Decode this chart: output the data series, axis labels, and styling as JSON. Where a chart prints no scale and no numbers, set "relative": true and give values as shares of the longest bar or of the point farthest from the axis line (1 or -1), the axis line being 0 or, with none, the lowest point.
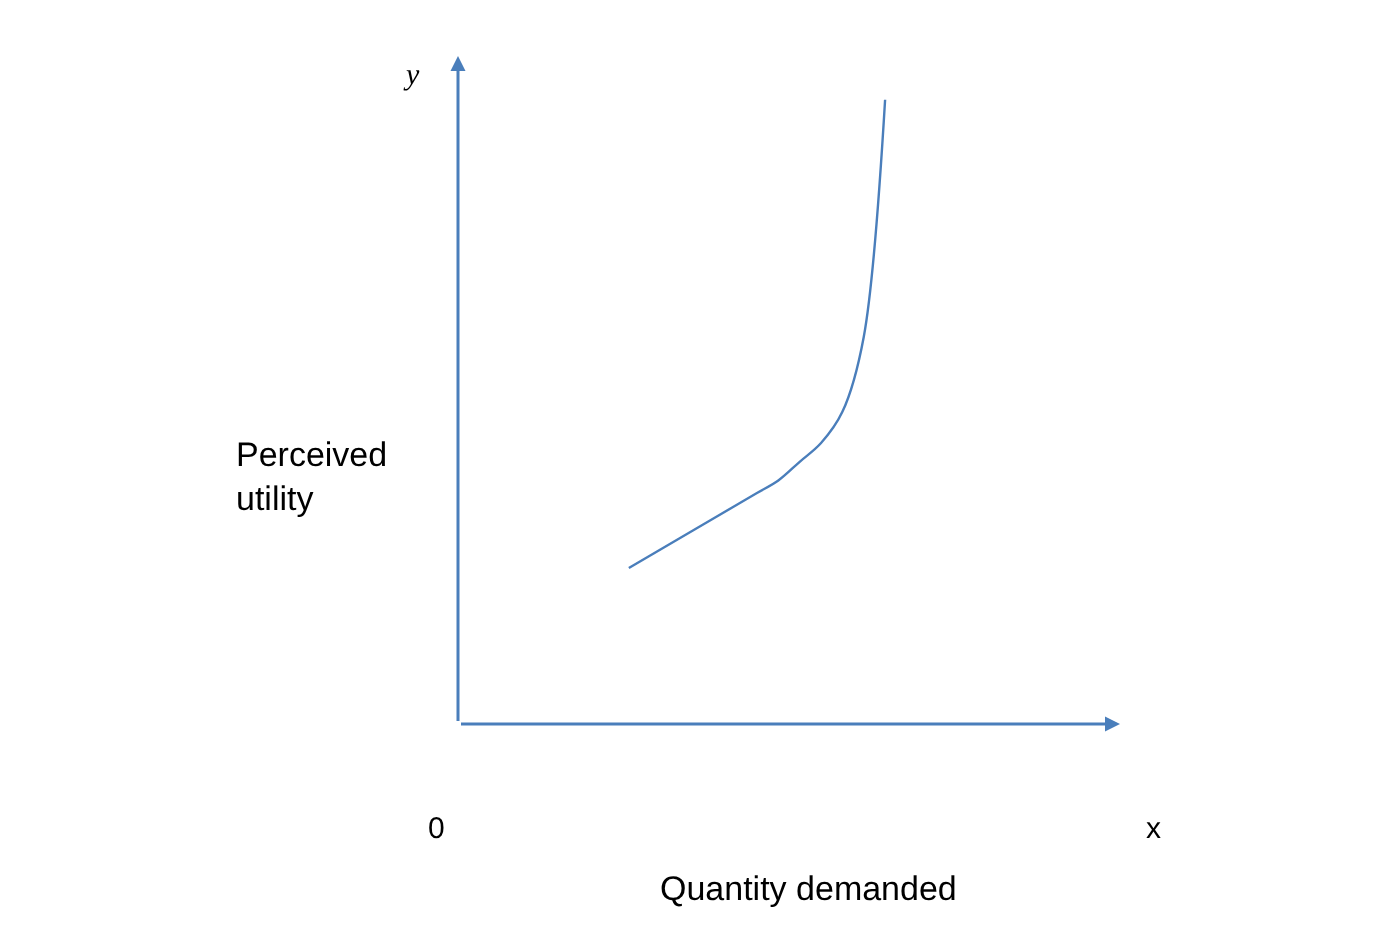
{
  "chart_data": {
    "type": "line",
    "relative": true,
    "xlabel": "Quantity demanded",
    "ylabel": "Perceived\nutility",
    "categories": [
      null,
      null,
      null,
      null,
      null,
      null,
      null,
      null,
      null,
      null,
      null,
      null,
      null,
      null,
      null,
      null,
      null,
      null,
      null,
      null,
      null,
      null,
      null,
      null,
      null,
      null,
      null,
      null,
      null,
      null,
      null,
      null
    ],
    "series": [
      {
        "color": "#4a7ebb",
        "values": [
          null,
          null,
          null,
          null,
          null,
          null,
          null,
          null,
          0.25,
          0.27,
          0.29,
          0.31,
          0.33,
          0.35,
          0.37,
          0.39,
          0.42,
          0.45,
          0.5,
          0.62,
          1.0,
          null,
          null,
          null,
          null,
          null,
          null,
          null,
          null,
          null,
          null,
          null
        ]
      }
    ],
    "annotations": [
      "y",
      "0",
      "x"
    ],
    "marker": "none",
    "line_style": "solid"
  }
}
